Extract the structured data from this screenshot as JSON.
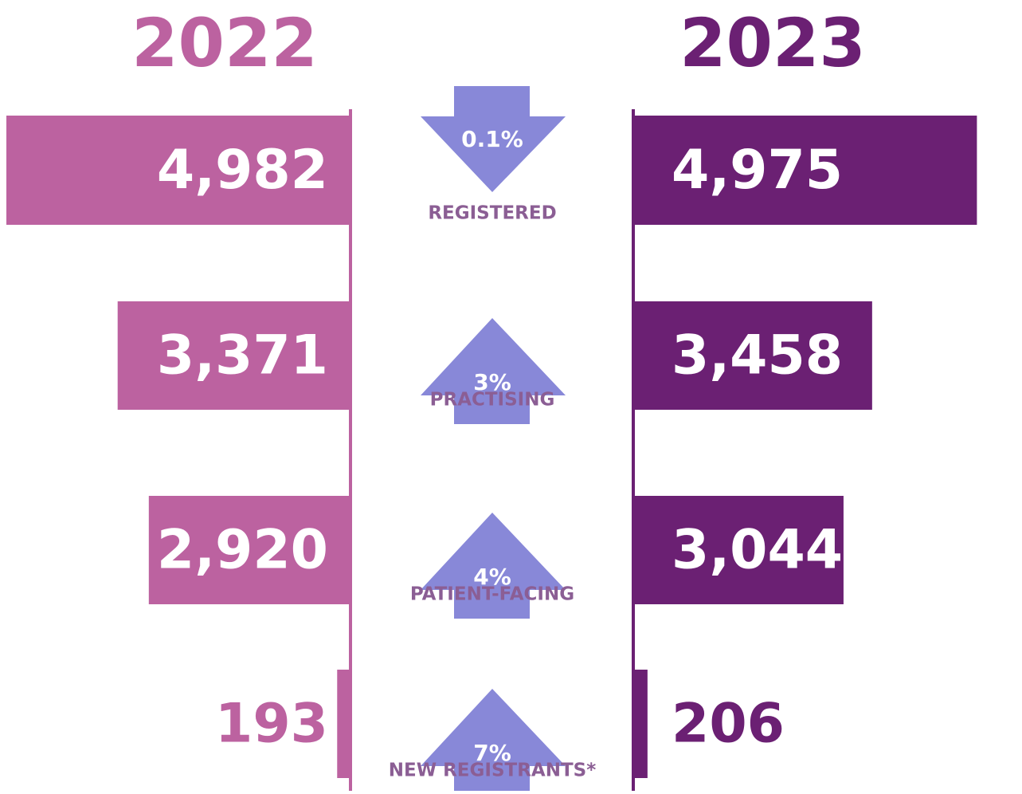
{
  "chart_data": {
    "type": "butterfly-bar",
    "categories": [
      "REGISTERED",
      "PRACTISING",
      "PATIENT-FACING",
      "NEW REGISTRANTS*"
    ],
    "series": [
      {
        "name": "2022",
        "color": "#bc62a0",
        "values": [
          4982,
          3371,
          2920,
          193
        ],
        "value_labels": [
          "4,982",
          "3,371",
          "2,920",
          "193"
        ]
      },
      {
        "name": "2023",
        "color": "#6b2073",
        "values": [
          4975,
          3458,
          3044,
          206
        ],
        "value_labels": [
          "4,975",
          "3,458",
          "3,044",
          "206"
        ]
      }
    ],
    "changes": {
      "values": [
        0.1,
        3,
        4,
        7
      ],
      "value_labels": [
        "0.1%",
        "3%",
        "4%",
        "7%"
      ],
      "direction": [
        "down",
        "up",
        "up",
        "up"
      ],
      "color": "#8888d8"
    },
    "category_color": "#8b5e94"
  }
}
